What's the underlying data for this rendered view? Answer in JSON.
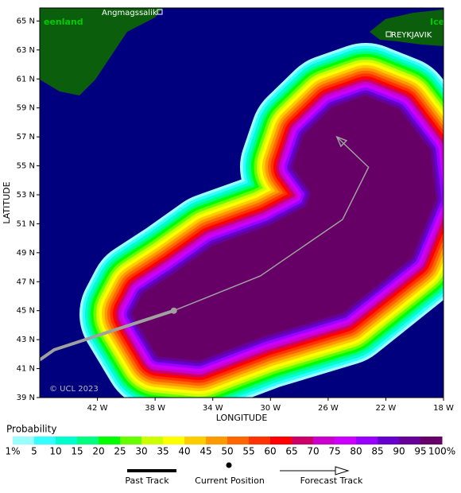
{
  "map": {
    "type": "probability-map",
    "xlabel": "LONGITUDE",
    "ylabel": "LATITUDE",
    "xlim": [
      -46,
      -18
    ],
    "ylim": [
      39,
      65.9
    ],
    "xticks": [
      {
        "value": -42,
        "label": "42 W"
      },
      {
        "value": -38,
        "label": "38 W"
      },
      {
        "value": -34,
        "label": "34 W"
      },
      {
        "value": -30,
        "label": "30 W"
      },
      {
        "value": -26,
        "label": "26 W"
      },
      {
        "value": -22,
        "label": "22 W"
      },
      {
        "value": -18,
        "label": "18 W"
      }
    ],
    "yticks": [
      {
        "value": 39,
        "label": "39 N"
      },
      {
        "value": 41,
        "label": "41 N"
      },
      {
        "value": 43,
        "label": "43 N"
      },
      {
        "value": 45,
        "label": "45 N"
      },
      {
        "value": 47,
        "label": "47 N"
      },
      {
        "value": 49,
        "label": "49 N"
      },
      {
        "value": 51,
        "label": "51 N"
      },
      {
        "value": 53,
        "label": "53 N"
      },
      {
        "value": 55,
        "label": "55 N"
      },
      {
        "value": 57,
        "label": "57 N"
      },
      {
        "value": 59,
        "label": "59 N"
      },
      {
        "value": 61,
        "label": "61 N"
      },
      {
        "value": 63,
        "label": "63 N"
      },
      {
        "value": 65,
        "label": "65 N"
      }
    ],
    "places": [
      "eenland",
      "Angmagssalik",
      "Ice",
      "REYKJAVIK"
    ],
    "copyright": "© UCL 2023",
    "past_track": {
      "name": "Past Track",
      "lon": [
        -46,
        -45,
        -36.7
      ],
      "lat": [
        41.6,
        42.3,
        45.0
      ]
    },
    "current_position": {
      "name": "Current Position",
      "lon": -36.7,
      "lat": 45.0
    },
    "forecast_track": {
      "name": "Forecast Track",
      "lon": [
        -36.7,
        -30.7,
        -25.0,
        -23.2,
        -25.4
      ],
      "lat": [
        45.0,
        47.4,
        51.3,
        54.9,
        57.0
      ]
    },
    "probability": {
      "title": "Probability",
      "labels": [
        "1%",
        "5",
        "10",
        "15",
        "20",
        "25",
        "30",
        "35",
        "40",
        "45",
        "50",
        "55",
        "60",
        "65",
        "70",
        "75",
        "80",
        "85",
        "90",
        "95",
        "100%"
      ],
      "colors": [
        "#99ffff",
        "#33ffff",
        "#00ffcc",
        "#00ff80",
        "#00ff00",
        "#66ff00",
        "#ccff00",
        "#ffff00",
        "#ffcc00",
        "#ff9900",
        "#ff6600",
        "#ff3300",
        "#ff0000",
        "#cc0066",
        "#cc00cc",
        "#cc00ff",
        "#9900ff",
        "#6600cc",
        "#660099",
        "#660066"
      ]
    }
  }
}
